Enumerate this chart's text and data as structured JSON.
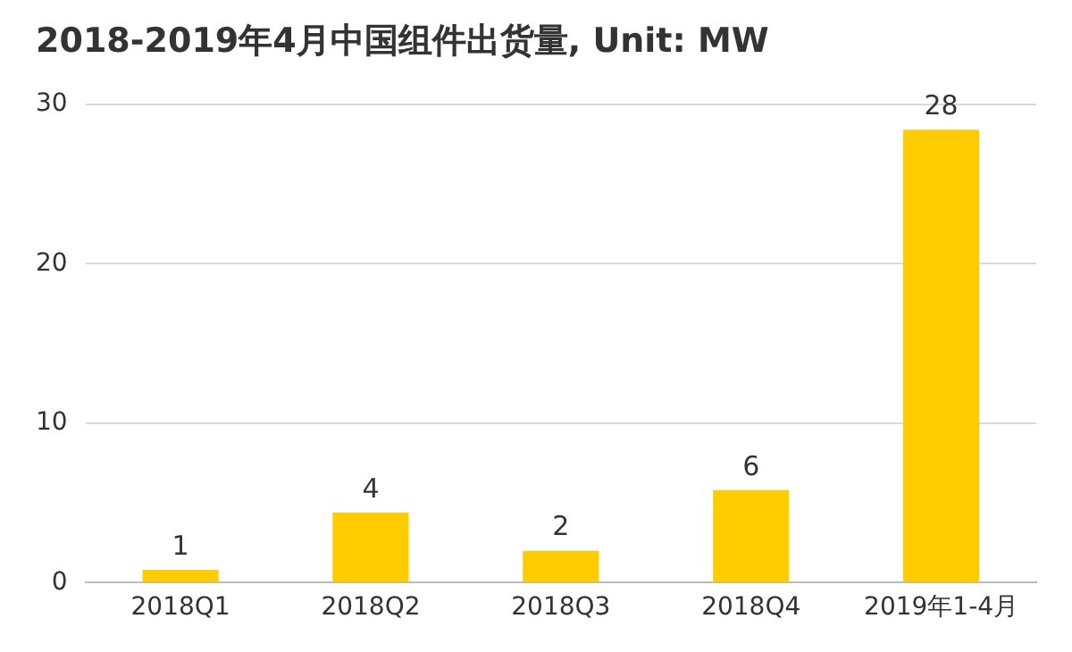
{
  "chart_data": {
    "type": "bar",
    "title": "2018-2019年4月中国组件出货量, Unit: MW",
    "categories": [
      "2018Q1",
      "2018Q2",
      "2018Q3",
      "2018Q4",
      "2019年1-4月"
    ],
    "values": [
      0.8,
      4.4,
      2,
      5.8,
      28.4
    ],
    "value_labels": [
      "1",
      "4",
      "2",
      "6",
      "28"
    ],
    "color": "#ffcc00",
    "ylim": [
      0,
      30
    ],
    "yticks": [
      0,
      10,
      20,
      30
    ],
    "grid": "y",
    "legend": false
  }
}
